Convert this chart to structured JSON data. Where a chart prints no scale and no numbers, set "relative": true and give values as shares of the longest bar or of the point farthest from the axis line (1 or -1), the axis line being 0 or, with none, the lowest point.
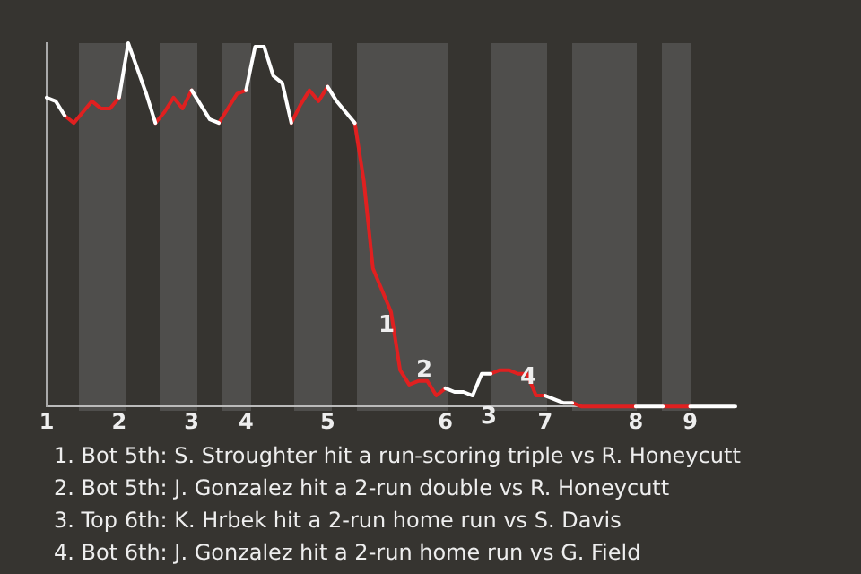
{
  "chart_data": {
    "type": "line",
    "relative": true,
    "legend": false,
    "marker": "none",
    "line_style": "solid",
    "categories": [
      "1",
      null,
      null,
      null,
      null,
      null,
      null,
      null,
      "2",
      null,
      null,
      null,
      null,
      null,
      null,
      null,
      "3",
      null,
      null,
      null,
      null,
      null,
      "4",
      null,
      null,
      null,
      null,
      null,
      null,
      null,
      null,
      "5",
      null,
      null,
      null,
      null,
      null,
      null,
      null,
      null,
      null,
      null,
      null,
      null,
      "6",
      null,
      null,
      null,
      null,
      null,
      null,
      null,
      null,
      null,
      null,
      "7",
      null,
      null,
      null,
      null,
      null,
      null,
      null,
      null,
      null,
      "8",
      null,
      null,
      null,
      null,
      null,
      "9",
      null,
      null,
      null,
      null,
      null
    ],
    "series": [
      {
        "color": "#ffffff",
        "values": [
          0.85,
          0.84,
          0.8,
          null,
          null,
          null,
          null,
          null,
          0.85,
          1.0,
          0.93,
          0.86,
          0.78,
          null,
          null,
          null,
          0.87,
          0.83,
          0.79,
          0.78,
          null,
          null,
          0.87,
          0.99,
          0.99,
          0.91,
          0.89,
          0.78,
          null,
          null,
          null,
          0.88,
          0.84,
          0.81,
          0.78,
          null,
          null,
          null,
          null,
          null,
          null,
          null,
          null,
          null,
          0.05,
          0.04,
          0.04,
          0.03,
          0.09,
          0.09,
          null,
          null,
          null,
          null,
          null,
          0.03,
          0.02,
          0.01,
          0.01,
          null,
          null,
          null,
          null,
          null,
          null,
          0,
          0,
          0,
          0,
          null,
          null,
          0,
          0,
          0,
          0,
          0,
          0
        ]
      },
      {
        "color": "#e02020",
        "values": [
          null,
          null,
          0.8,
          0.78,
          0.81,
          0.84,
          0.82,
          0.82,
          0.85,
          null,
          null,
          null,
          0.78,
          0.81,
          0.85,
          0.82,
          0.87,
          null,
          null,
          0.78,
          0.82,
          0.86,
          0.87,
          null,
          null,
          null,
          null,
          0.78,
          0.83,
          0.87,
          0.84,
          0.88,
          null,
          null,
          0.78,
          0.62,
          0.38,
          0.32,
          0.26,
          0.1,
          0.06,
          0.07,
          0.07,
          0.03,
          0.05,
          null,
          null,
          null,
          null,
          0.09,
          0.1,
          0.1,
          0.09,
          0.09,
          0.03,
          0.03,
          null,
          null,
          0.01,
          0,
          0,
          0,
          0,
          0,
          0,
          0,
          null,
          null,
          0,
          0,
          0,
          0,
          null,
          null,
          null,
          null,
          null
        ]
      }
    ],
    "annotations": [
      "1",
      "2",
      "3",
      "4",
      "1. Bot 5th: S. Stroughter hit a run-scoring triple vs R. Honeycutt",
      "2. Bot 5th: J. Gonzalez hit a 2-run double vs R. Honeycutt",
      "3. Top 6th: K. Hrbek hit a 2-run home run vs S. Davis",
      "4. Bot 6th: J. Gonzalez hit a 2-run home run vs G. Field"
    ]
  }
}
